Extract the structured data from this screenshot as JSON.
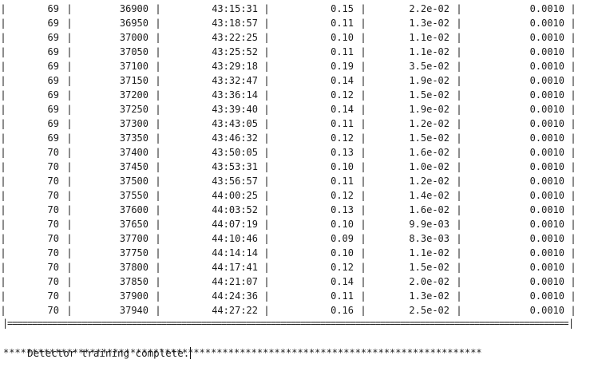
{
  "console": {
    "separator_char": "|",
    "rows": [
      {
        "epoch": "69",
        "iteration": "36900",
        "time": "43:15:31",
        "loss": "0.15",
        "err": "2.2e-02",
        "lr": "0.0010"
      },
      {
        "epoch": "69",
        "iteration": "36950",
        "time": "43:18:57",
        "loss": "0.11",
        "err": "1.3e-02",
        "lr": "0.0010"
      },
      {
        "epoch": "69",
        "iteration": "37000",
        "time": "43:22:25",
        "loss": "0.10",
        "err": "1.1e-02",
        "lr": "0.0010"
      },
      {
        "epoch": "69",
        "iteration": "37050",
        "time": "43:25:52",
        "loss": "0.11",
        "err": "1.1e-02",
        "lr": "0.0010"
      },
      {
        "epoch": "69",
        "iteration": "37100",
        "time": "43:29:18",
        "loss": "0.19",
        "err": "3.5e-02",
        "lr": "0.0010"
      },
      {
        "epoch": "69",
        "iteration": "37150",
        "time": "43:32:47",
        "loss": "0.14",
        "err": "1.9e-02",
        "lr": "0.0010"
      },
      {
        "epoch": "69",
        "iteration": "37200",
        "time": "43:36:14",
        "loss": "0.12",
        "err": "1.5e-02",
        "lr": "0.0010"
      },
      {
        "epoch": "69",
        "iteration": "37250",
        "time": "43:39:40",
        "loss": "0.14",
        "err": "1.9e-02",
        "lr": "0.0010"
      },
      {
        "epoch": "69",
        "iteration": "37300",
        "time": "43:43:05",
        "loss": "0.11",
        "err": "1.2e-02",
        "lr": "0.0010"
      },
      {
        "epoch": "69",
        "iteration": "37350",
        "time": "43:46:32",
        "loss": "0.12",
        "err": "1.5e-02",
        "lr": "0.0010"
      },
      {
        "epoch": "70",
        "iteration": "37400",
        "time": "43:50:05",
        "loss": "0.13",
        "err": "1.6e-02",
        "lr": "0.0010"
      },
      {
        "epoch": "70",
        "iteration": "37450",
        "time": "43:53:31",
        "loss": "0.10",
        "err": "1.0e-02",
        "lr": "0.0010"
      },
      {
        "epoch": "70",
        "iteration": "37500",
        "time": "43:56:57",
        "loss": "0.11",
        "err": "1.2e-02",
        "lr": "0.0010"
      },
      {
        "epoch": "70",
        "iteration": "37550",
        "time": "44:00:25",
        "loss": "0.12",
        "err": "1.4e-02",
        "lr": "0.0010"
      },
      {
        "epoch": "70",
        "iteration": "37600",
        "time": "44:03:52",
        "loss": "0.13",
        "err": "1.6e-02",
        "lr": "0.0010"
      },
      {
        "epoch": "70",
        "iteration": "37650",
        "time": "44:07:19",
        "loss": "0.10",
        "err": "9.9e-03",
        "lr": "0.0010"
      },
      {
        "epoch": "70",
        "iteration": "37700",
        "time": "44:10:46",
        "loss": "0.09",
        "err": "8.3e-03",
        "lr": "0.0010"
      },
      {
        "epoch": "70",
        "iteration": "37750",
        "time": "44:14:14",
        "loss": "0.10",
        "err": "1.1e-02",
        "lr": "0.0010"
      },
      {
        "epoch": "70",
        "iteration": "37800",
        "time": "44:17:41",
        "loss": "0.12",
        "err": "1.5e-02",
        "lr": "0.0010"
      },
      {
        "epoch": "70",
        "iteration": "37850",
        "time": "44:21:07",
        "loss": "0.14",
        "err": "2.0e-02",
        "lr": "0.0010"
      },
      {
        "epoch": "70",
        "iteration": "37900",
        "time": "44:24:36",
        "loss": "0.11",
        "err": "1.3e-02",
        "lr": "0.0010"
      },
      {
        "epoch": "70",
        "iteration": "37940",
        "time": "44:27:22",
        "loss": "0.16",
        "err": "2.5e-02",
        "lr": "0.0010"
      }
    ],
    "divider_line": "|==========================================================================================================================|",
    "completion_message": "Detector training complete.",
    "stars_line": "**********************************************************************************************************"
  }
}
